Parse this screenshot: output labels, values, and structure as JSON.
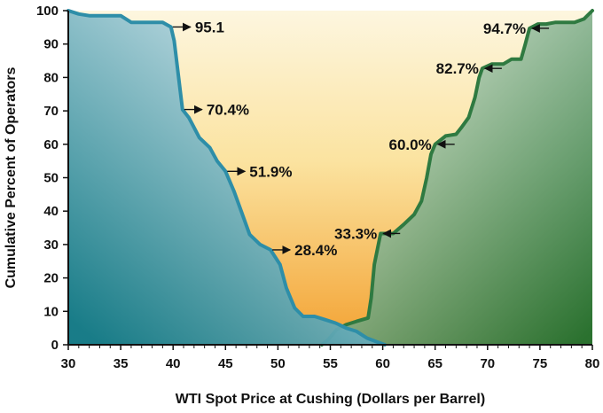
{
  "chart_data": {
    "type": "area",
    "xlabel": "WTI Spot Price at Cushing (Dollars per Barrel)",
    "ylabel": "Cumulative Percent of Operators",
    "xlim": [
      30,
      80
    ],
    "ylim": [
      0,
      100
    ],
    "x_ticks": [
      "30",
      "35",
      "40",
      "45",
      "50",
      "55",
      "60",
      "65",
      "70",
      "75",
      "80"
    ],
    "y_ticks": [
      "0",
      "10",
      "20",
      "30",
      "40",
      "50",
      "60",
      "70",
      "80",
      "90",
      "100"
    ],
    "grid": false,
    "legend": "none",
    "colors": {
      "background_light": "#fdf6df",
      "background_mid": "#fbe3a0",
      "background_dark": "#f3a232",
      "blue_line": "#2e8ea8",
      "blue_fill_light": "#d9e9f0",
      "blue_fill_dark": "#0d7a8c",
      "green_line": "#2f7a41",
      "green_fill_light": "#dfe9dc",
      "green_fill_dark": "#0f6a2e",
      "axis": "#111111"
    },
    "series": [
      {
        "key": "declining",
        "values": [
          [
            30,
            100
          ],
          [
            31,
            99
          ],
          [
            32,
            98.5
          ],
          [
            33,
            98.5
          ],
          [
            34,
            98.5
          ],
          [
            35,
            98.5
          ],
          [
            36,
            96.5
          ],
          [
            37,
            96.5
          ],
          [
            38,
            96.5
          ],
          [
            39,
            96.5
          ],
          [
            39.8,
            95.1
          ],
          [
            40.1,
            91
          ],
          [
            40.9,
            70.4
          ],
          [
            41.5,
            68
          ],
          [
            42.5,
            62
          ],
          [
            43.5,
            59
          ],
          [
            44.2,
            55
          ],
          [
            45,
            51.9
          ],
          [
            45.8,
            46
          ],
          [
            46.5,
            40
          ],
          [
            47.3,
            33
          ],
          [
            48.3,
            30
          ],
          [
            49.3,
            28.4
          ],
          [
            50.2,
            24
          ],
          [
            50.8,
            17
          ],
          [
            51.6,
            11
          ],
          [
            52.4,
            8.5
          ],
          [
            53.5,
            8.5
          ],
          [
            54.5,
            7.5
          ],
          [
            55.5,
            6.5
          ],
          [
            56.5,
            5
          ],
          [
            57.5,
            4
          ],
          [
            58.5,
            2
          ],
          [
            59.5,
            0.8
          ],
          [
            60.2,
            0
          ]
        ]
      },
      {
        "key": "rising",
        "values": [
          [
            54.2,
            0
          ],
          [
            54.8,
            1.5
          ],
          [
            55.6,
            4.5
          ],
          [
            56.5,
            6
          ],
          [
            57.5,
            7
          ],
          [
            58.6,
            8
          ],
          [
            58.9,
            14
          ],
          [
            59.2,
            24
          ],
          [
            59.8,
            33.3
          ],
          [
            61,
            33.3
          ],
          [
            62,
            36
          ],
          [
            63,
            39
          ],
          [
            63.7,
            43
          ],
          [
            64.2,
            50
          ],
          [
            64.6,
            57
          ],
          [
            65,
            60
          ],
          [
            66,
            62.5
          ],
          [
            67,
            63
          ],
          [
            67.5,
            65
          ],
          [
            68.2,
            68
          ],
          [
            68.8,
            74
          ],
          [
            69.2,
            80
          ],
          [
            69.5,
            82.7
          ],
          [
            70.4,
            84
          ],
          [
            71.5,
            84
          ],
          [
            72.3,
            85.5
          ],
          [
            73.2,
            85.5
          ],
          [
            73.6,
            90
          ],
          [
            74,
            94.7
          ],
          [
            74.8,
            96
          ],
          [
            75.6,
            96
          ],
          [
            76.5,
            96.5
          ],
          [
            77.5,
            96.5
          ],
          [
            78.3,
            96.5
          ],
          [
            79.2,
            97.5
          ],
          [
            80,
            100
          ]
        ]
      }
    ],
    "annotations": [
      {
        "text": "95.1",
        "x": 39.8,
        "y": 95.1,
        "arrow": "to-point-from-right"
      },
      {
        "text": "70.4%",
        "x": 40.9,
        "y": 70.4,
        "arrow": "to-point-from-right"
      },
      {
        "text": "51.9%",
        "x": 45,
        "y": 51.9,
        "arrow": "to-point-from-right"
      },
      {
        "text": "28.4%",
        "x": 49.3,
        "y": 28.4,
        "arrow": "to-point-from-right"
      },
      {
        "text": "33.3%",
        "x": 59.8,
        "y": 33.3,
        "arrow": "to-point-from-left"
      },
      {
        "text": "60.0%",
        "x": 65,
        "y": 60,
        "arrow": "to-point-from-left"
      },
      {
        "text": "82.7%",
        "x": 69.5,
        "y": 82.7,
        "arrow": "to-point-from-left"
      },
      {
        "text": "94.7%",
        "x": 74,
        "y": 94.7,
        "arrow": "to-point-from-left"
      }
    ]
  }
}
